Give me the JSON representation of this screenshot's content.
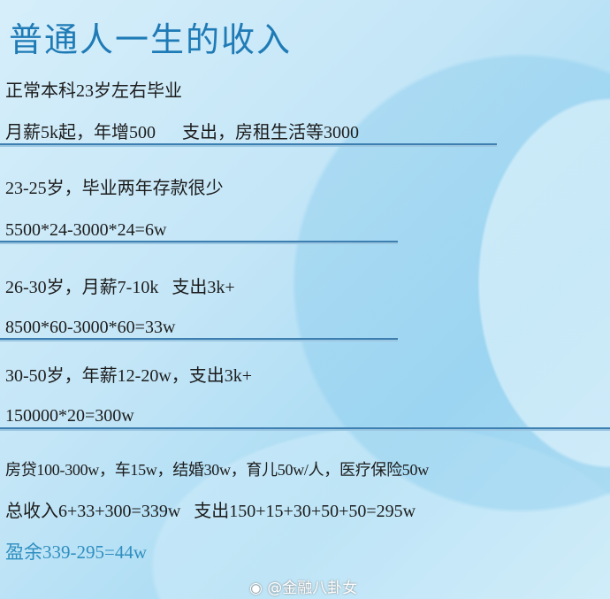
{
  "title": "普通人一生的收入",
  "lines": [
    "正常本科23岁左右毕业",
    "月薪5k起，年增500      支出，房租生活等3000",
    "23-25岁，毕业两年存款很少",
    "5500*24-3000*24=6w",
    "26-30岁，月薪7-10k   支出3k+",
    "8500*60-3000*60=33w",
    "30-50岁，年薪12-20w，支出3k+",
    "150000*20=300w",
    "房贷100-300w，车15w，结婚30w，育儿50w/人，医疗保险50w",
    "总收入6+33+300=339w   支出150+15+30+50+50=295w",
    "盈余339-295=44w"
  ],
  "watermark": "@金融八卦女",
  "colors": {
    "title": "#1f7bb6",
    "surplus": "#2f8fc0",
    "rule": "#3d7fb0"
  }
}
